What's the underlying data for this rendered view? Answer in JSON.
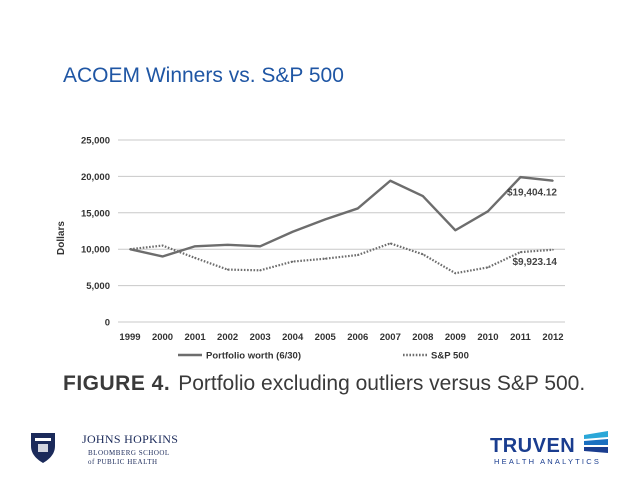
{
  "slide": {
    "title": "ACOEM Winners vs. S&P 500"
  },
  "figure": {
    "label": "FIGURE 4.",
    "caption": "Portfolio excluding outliers versus S&P 500."
  },
  "logos": {
    "jh_name": "JOHNS HOPKINS",
    "jh_line1": "BLOOMBERG SCHOOL",
    "jh_line2": "of PUBLIC HEALTH",
    "truven_name": "TRUVEN",
    "truven_sub": "HEALTH ANALYTICS"
  },
  "colors": {
    "title": "#1f56a4",
    "series": "#6d6d6d",
    "grid": "#c8c8c8"
  },
  "chart_data": {
    "type": "line",
    "x": [
      "1999",
      "2000",
      "2001",
      "2002",
      "2003",
      "2004",
      "2005",
      "2006",
      "2007",
      "2008",
      "2009",
      "2010",
      "2011",
      "2012"
    ],
    "ylabel": "Dollars",
    "ylim": [
      0,
      25000
    ],
    "yticks": [
      "0",
      "5,000",
      "10,000",
      "15,000",
      "20,000",
      "25,000"
    ],
    "grid": true,
    "legend_position": "bottom",
    "series": [
      {
        "name": "Portfolio worth (6/30)",
        "style": "solid",
        "values": [
          10000,
          9000,
          10400,
          10600,
          10400,
          12400,
          14100,
          15600,
          19400,
          17300,
          12600,
          15200,
          19900,
          19404.12
        ],
        "end_label": "$19,404.12"
      },
      {
        "name": "S&P 500",
        "style": "dotted",
        "values": [
          10000,
          10500,
          8800,
          7200,
          7100,
          8300,
          8700,
          9200,
          10800,
          9300,
          6700,
          7500,
          9600,
          9923.14
        ],
        "end_label": "$9,923.14"
      }
    ]
  }
}
